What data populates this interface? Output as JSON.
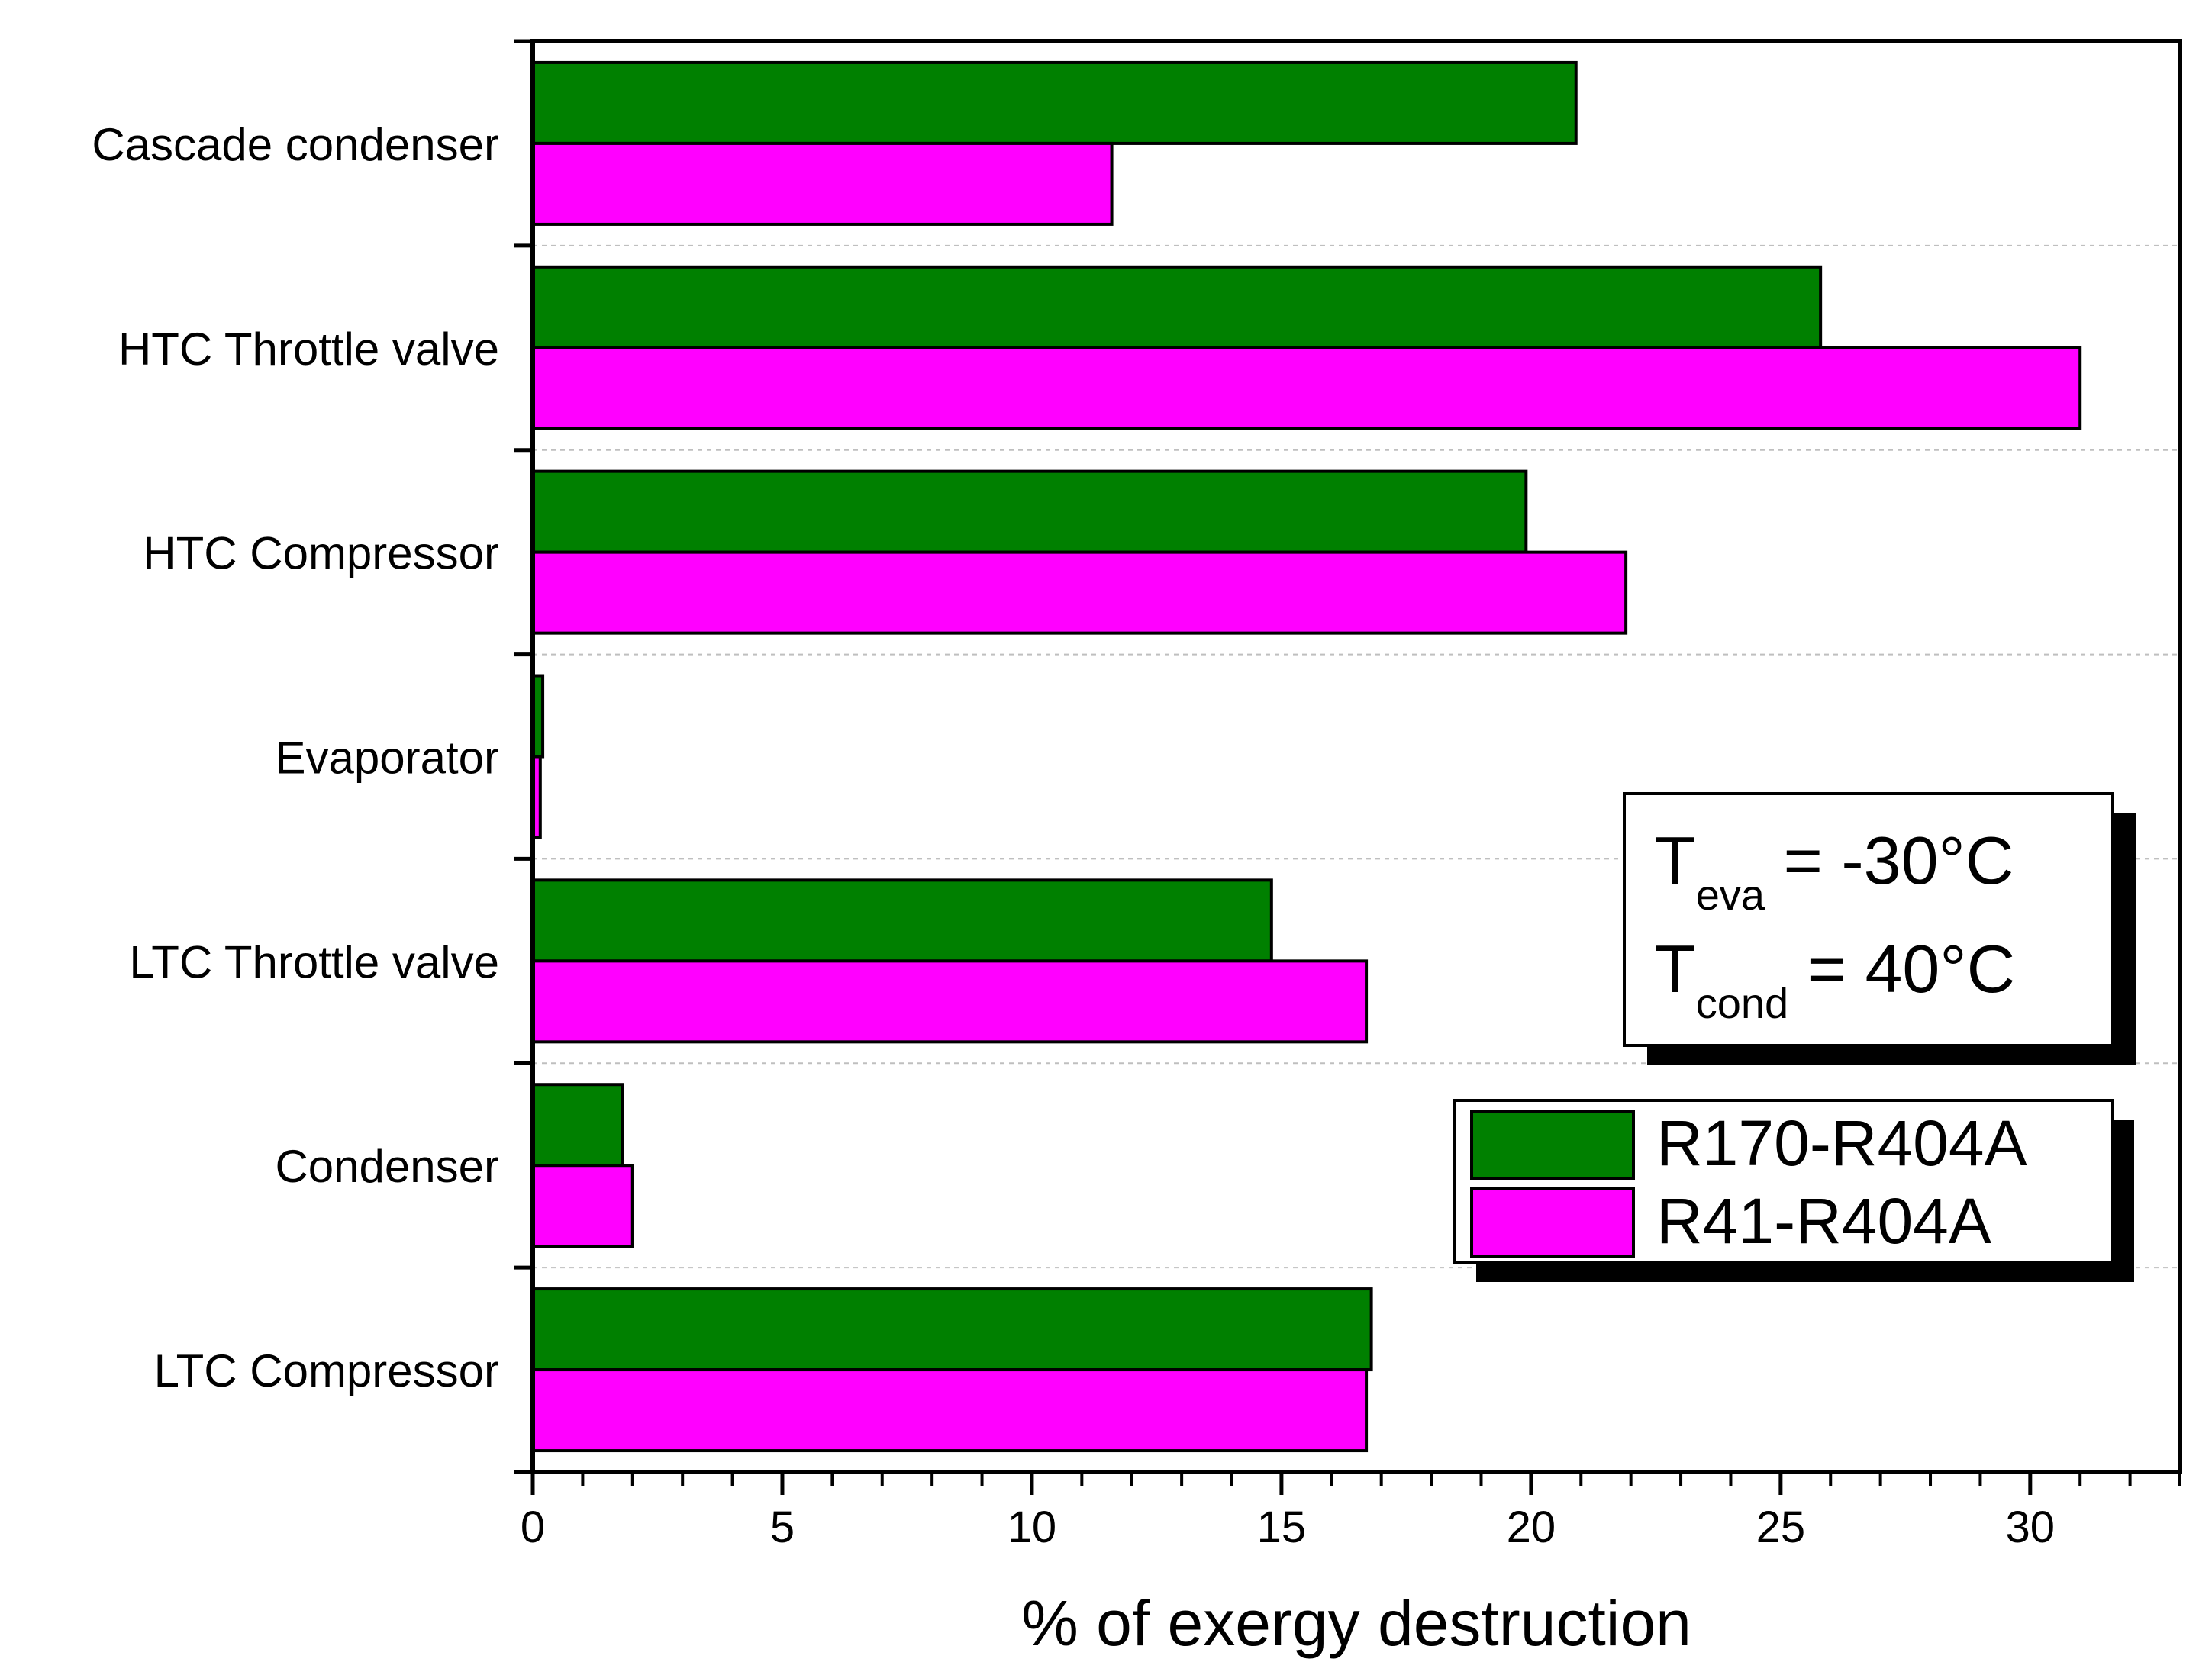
{
  "chart_data": {
    "type": "bar",
    "orientation": "horizontal",
    "categories": [
      "Cascade condenser",
      "HTC Throttle valve",
      "HTC Compressor",
      "Evaporator",
      "LTC Throttle valve",
      "Condenser",
      "LTC Compressor"
    ],
    "series": [
      {
        "name": "R170-R404A",
        "color": "#008000",
        "values": [
          20.9,
          25.8,
          19.9,
          0.2,
          14.8,
          1.8,
          16.8
        ]
      },
      {
        "name": "R41-R404A",
        "color": "#ff00ff",
        "values": [
          11.6,
          31.0,
          21.9,
          0.15,
          16.7,
          2.0,
          16.7
        ]
      }
    ],
    "xlabel": "% of exergy destruction",
    "xlim": [
      0,
      33
    ],
    "xticks": [
      0,
      5,
      10,
      15,
      20,
      25,
      30
    ],
    "xtick_labels": [
      "0",
      "5",
      "10",
      "15",
      "20",
      "25",
      "30"
    ],
    "grid": "horizontal dashed separators between categories",
    "legend_position": "center-right",
    "annotation": {
      "line1": {
        "sym": "T",
        "sub": "eva",
        "text": " = -30",
        "deg": "°",
        "unit": "C"
      },
      "line2": {
        "sym": "T",
        "sub": "cond",
        "text": " = 40",
        "deg": "°",
        "unit": "C"
      }
    }
  }
}
